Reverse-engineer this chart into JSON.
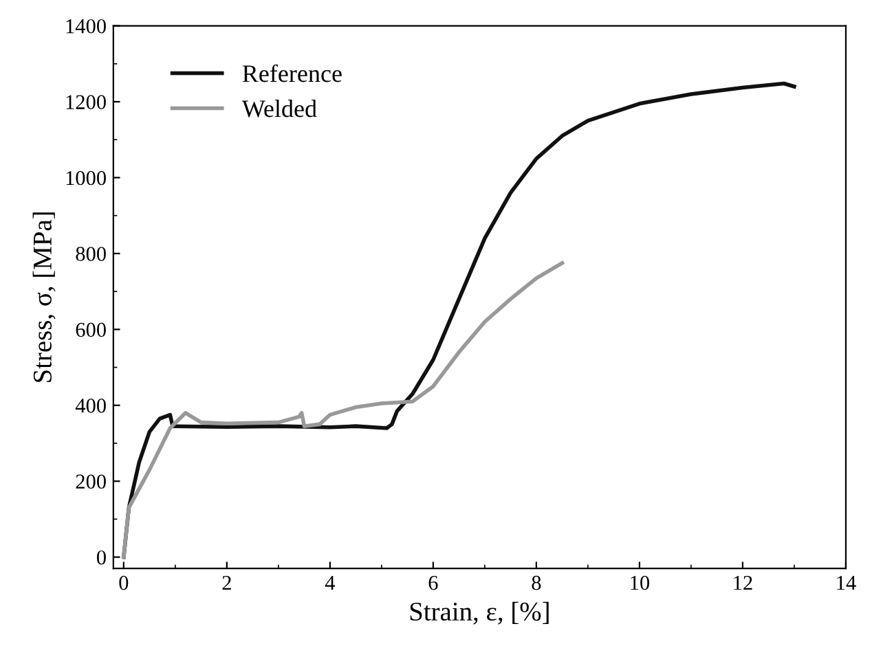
{
  "chart_data": {
    "type": "line",
    "xlabel": "Strain, ε, [%]",
    "ylabel": "Stress, σ, [MPa]",
    "xlim": [
      -0.2,
      14
    ],
    "ylim": [
      -30,
      1400
    ],
    "xticks": [
      0,
      2,
      4,
      6,
      8,
      10,
      12,
      14
    ],
    "yticks": [
      0,
      200,
      400,
      600,
      800,
      1000,
      1200,
      1400
    ],
    "grid": false,
    "legend": "top left",
    "marker": "none",
    "line_style": "solid",
    "series": [
      {
        "name": "Reference",
        "color": "#111111",
        "x": [
          0,
          0.1,
          0.3,
          0.5,
          0.7,
          0.9,
          0.95,
          2,
          3,
          4,
          4.5,
          5.1,
          5.2,
          5.3,
          5.6,
          6,
          6.5,
          7,
          7.5,
          8,
          8.5,
          9,
          10,
          11,
          12,
          12.8,
          13
        ],
        "values": [
          0,
          130,
          250,
          330,
          365,
          375,
          345,
          343,
          345,
          342,
          345,
          340,
          350,
          385,
          430,
          520,
          680,
          840,
          960,
          1050,
          1110,
          1150,
          1195,
          1220,
          1237,
          1248,
          1240
        ]
      },
      {
        "name": "Welded",
        "color": "#999999",
        "x": [
          0,
          0.1,
          0.5,
          0.9,
          1.2,
          1.5,
          2,
          3,
          3.4,
          3.45,
          3.5,
          3.8,
          4.0,
          4.5,
          5,
          5.6,
          6,
          6.5,
          7,
          7.5,
          8,
          8.5
        ],
        "values": [
          0,
          130,
          230,
          340,
          380,
          355,
          352,
          355,
          370,
          380,
          345,
          350,
          375,
          395,
          405,
          410,
          450,
          540,
          620,
          680,
          735,
          775
        ]
      }
    ]
  }
}
